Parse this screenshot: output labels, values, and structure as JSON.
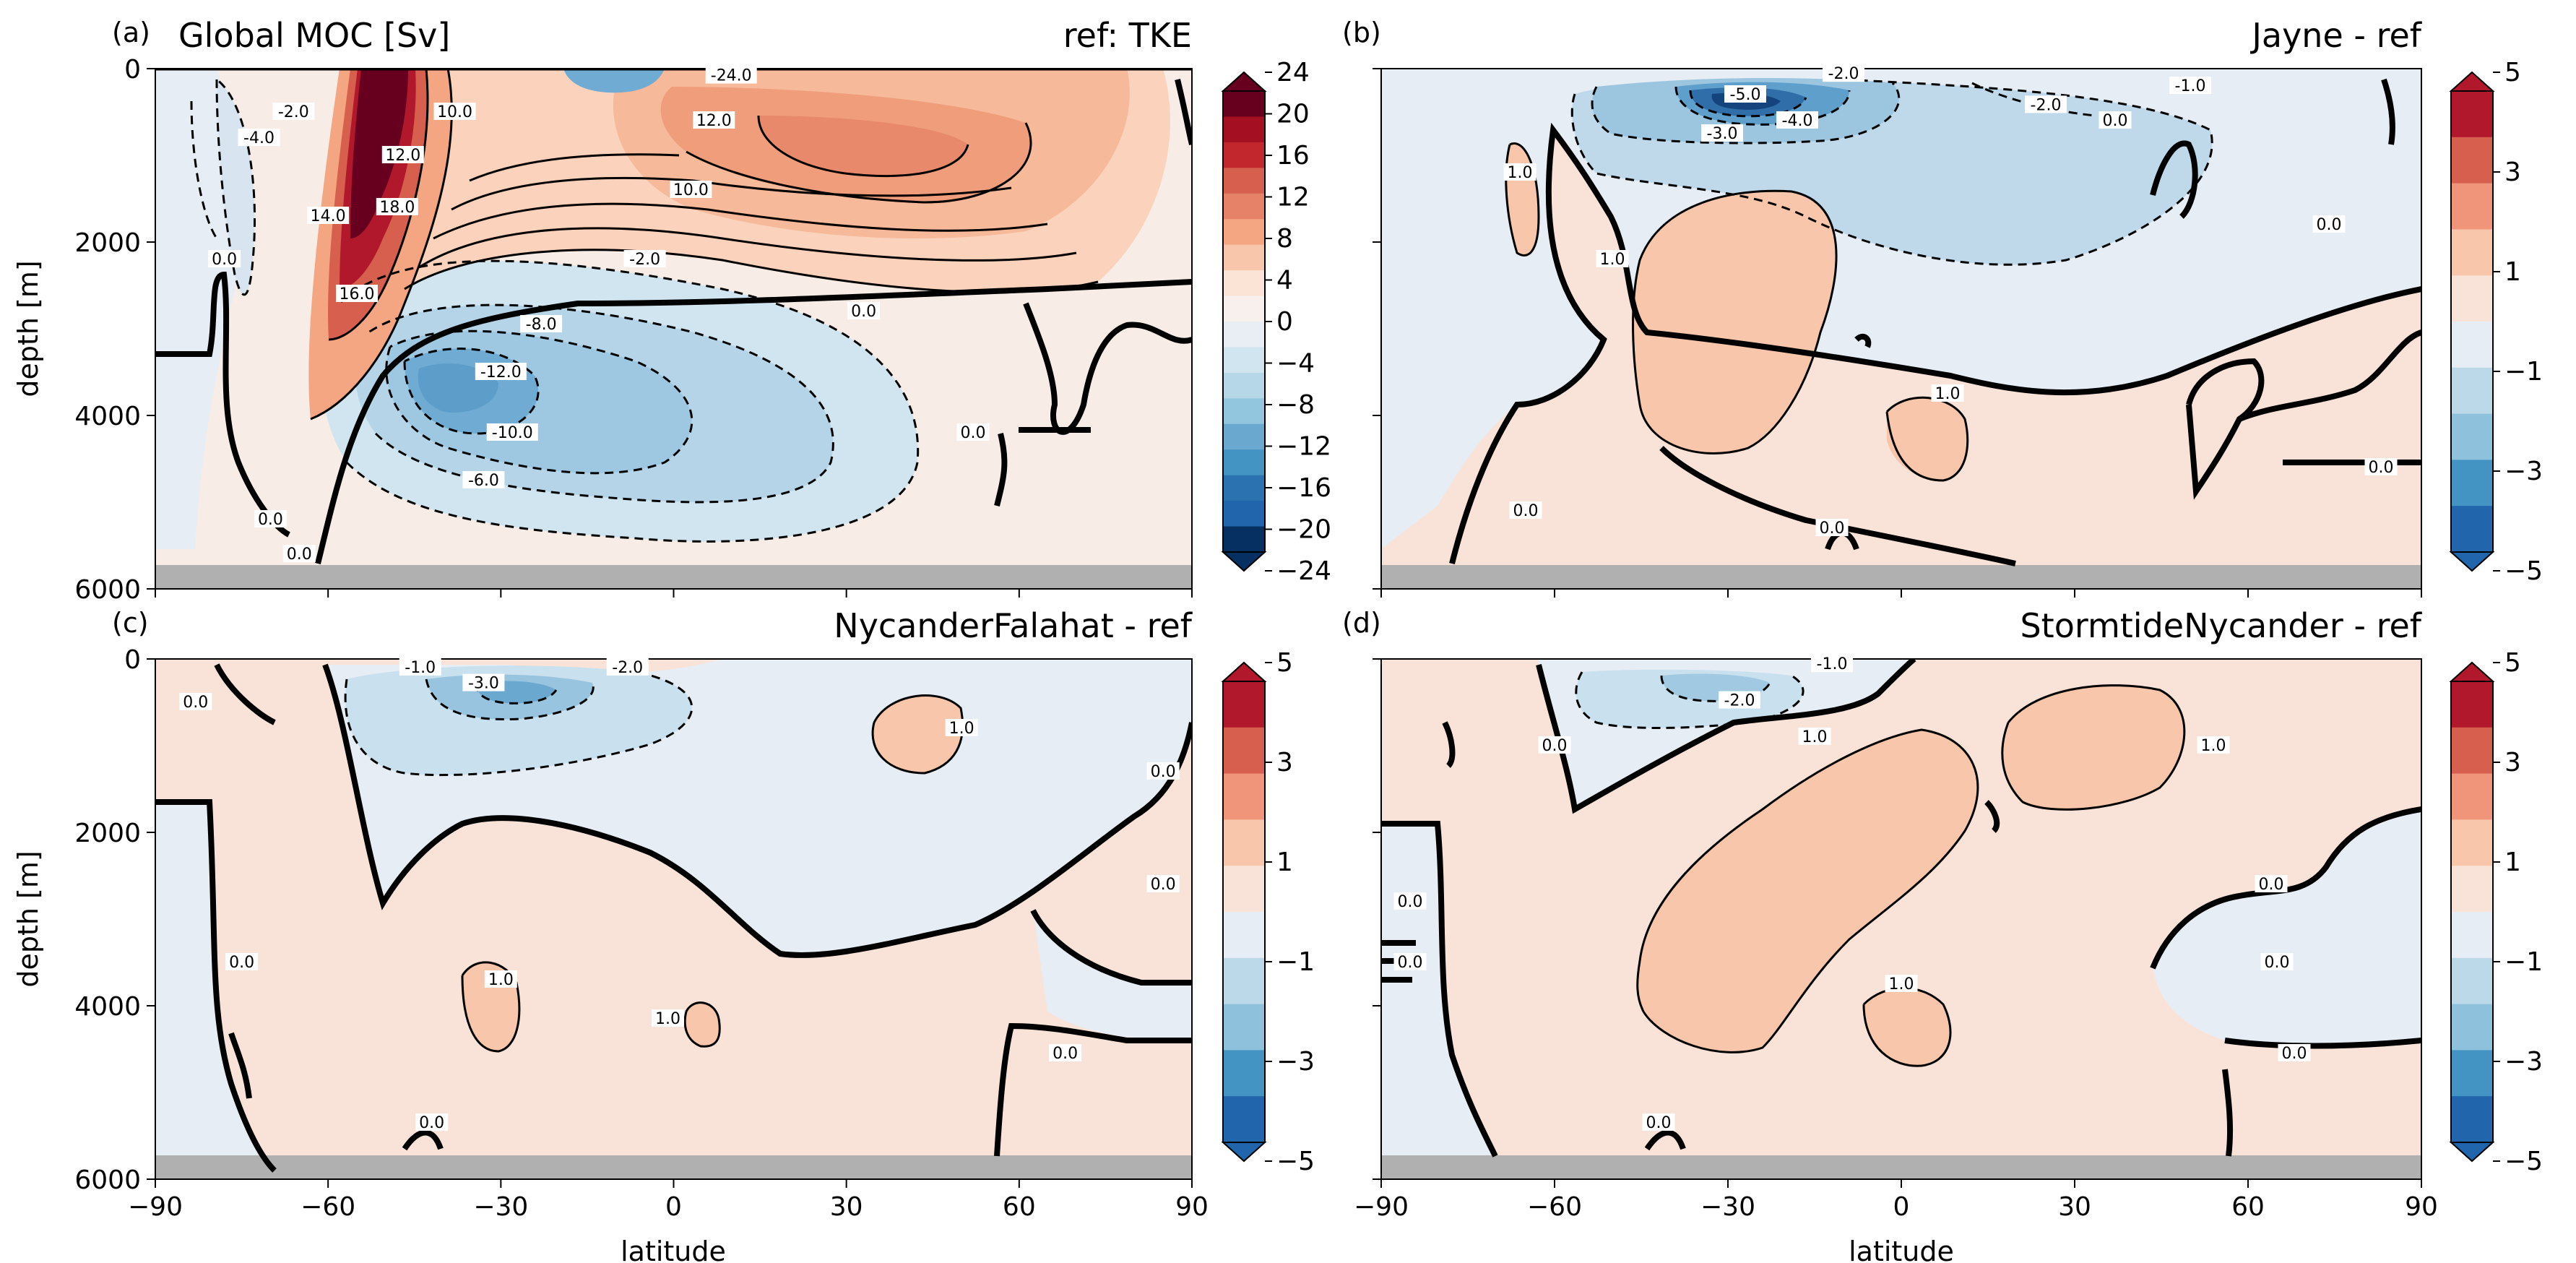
{
  "chart_data": [
    {
      "type": "heatmap",
      "panel": "(a)",
      "title": "Global MOC [Sv]",
      "subtitle": "ref: TKE",
      "xlabel": "",
      "ylabel": "depth [m]",
      "xlim": [
        -90,
        90
      ],
      "ylim": [
        6000,
        0
      ],
      "xticks": [
        "",
        "",
        "",
        "",
        "",
        "",
        ""
      ],
      "yticks": [
        "0",
        "2000",
        "4000",
        "6000"
      ],
      "colorbar_ticks": [
        "24",
        "20",
        "16",
        "12",
        "8",
        "4",
        "0",
        "−4",
        "−8",
        "−12",
        "−16",
        "−20",
        "−24"
      ],
      "contour_labels": [
        {
          "lat": -72,
          "depth": 800,
          "text": "-4.0"
        },
        {
          "lat": -66,
          "depth": 500,
          "text": "-2.0"
        },
        {
          "lat": -78,
          "depth": 2200,
          "text": "0.0"
        },
        {
          "lat": -60,
          "depth": 1700,
          "text": "14.0"
        },
        {
          "lat": -55,
          "depth": 2600,
          "text": "16.0"
        },
        {
          "lat": -48,
          "depth": 1600,
          "text": "18.0"
        },
        {
          "lat": -47,
          "depth": 1000,
          "text": "12.0"
        },
        {
          "lat": -38,
          "depth": 500,
          "text": "10.0"
        },
        {
          "lat": -5,
          "depth": 2200,
          "text": "-2.0"
        },
        {
          "lat": -23,
          "depth": 2950,
          "text": "-8.0"
        },
        {
          "lat": -30,
          "depth": 3500,
          "text": "-12.0"
        },
        {
          "lat": -28,
          "depth": 4200,
          "text": "-10.0"
        },
        {
          "lat": -33,
          "depth": 4750,
          "text": "-6.0"
        },
        {
          "lat": 3,
          "depth": 1400,
          "text": "10.0"
        },
        {
          "lat": 7,
          "depth": 600,
          "text": "12.0"
        },
        {
          "lat": 10,
          "depth": 80,
          "text": "-24.0"
        },
        {
          "lat": 33,
          "depth": 2800,
          "text": "0.0"
        },
        {
          "lat": 52,
          "depth": 4200,
          "text": "0.0"
        },
        {
          "lat": -70,
          "depth": 5200,
          "text": "0.0"
        },
        {
          "lat": -65,
          "depth": 5600,
          "text": "0.0"
        }
      ]
    },
    {
      "type": "heatmap",
      "panel": "(b)",
      "title": "",
      "subtitle": "Jayne - ref",
      "xlabel": "",
      "ylabel": "",
      "xlim": [
        -90,
        90
      ],
      "ylim": [
        6000,
        0
      ],
      "xticks": [
        "",
        "",
        "",
        "",
        "",
        "",
        ""
      ],
      "yticks": [
        "",
        "",
        "",
        ""
      ],
      "colorbar_ticks": [
        "5",
        "3",
        "1",
        "−1",
        "−3",
        "−5"
      ],
      "contour_labels": [
        {
          "lat": -27,
          "depth": 300,
          "text": "-5.0"
        },
        {
          "lat": -31,
          "depth": 750,
          "text": "-3.0"
        },
        {
          "lat": -18,
          "depth": 600,
          "text": "-4.0"
        },
        {
          "lat": -10,
          "depth": 60,
          "text": "-2.0"
        },
        {
          "lat": 25,
          "depth": 420,
          "text": "-2.0"
        },
        {
          "lat": 50,
          "depth": 200,
          "text": "-1.0"
        },
        {
          "lat": -66,
          "depth": 1200,
          "text": "1.0"
        },
        {
          "lat": -50,
          "depth": 2200,
          "text": "1.0"
        },
        {
          "lat": 8,
          "depth": 3750,
          "text": "1.0"
        },
        {
          "lat": 37,
          "depth": 600,
          "text": "0.0"
        },
        {
          "lat": 74,
          "depth": 1800,
          "text": "0.0"
        },
        {
          "lat": 83,
          "depth": 4600,
          "text": "0.0"
        },
        {
          "lat": -12,
          "depth": 5300,
          "text": "0.0"
        },
        {
          "lat": -65,
          "depth": 5100,
          "text": "0.0"
        }
      ]
    },
    {
      "type": "heatmap",
      "panel": "(c)",
      "title": "",
      "subtitle": "NycanderFalahat - ref",
      "xlabel": "",
      "ylabel": "depth [m]",
      "xlim": [
        -90,
        90
      ],
      "ylim": [
        6000,
        0
      ],
      "xticks": [
        "−90",
        "−60",
        "−30",
        "0",
        "30",
        "60",
        "90"
      ],
      "yticks": [
        "0",
        "2000",
        "4000",
        "6000"
      ],
      "colorbar_ticks": [
        "5",
        "3",
        "1",
        "−1",
        "−3",
        "−5"
      ],
      "contour_labels": [
        {
          "lat": -33,
          "depth": 280,
          "text": "-3.0"
        },
        {
          "lat": -44,
          "depth": 100,
          "text": "-1.0"
        },
        {
          "lat": -8,
          "depth": 100,
          "text": "-2.0"
        },
        {
          "lat": -83,
          "depth": 500,
          "text": "0.0"
        },
        {
          "lat": 50,
          "depth": 800,
          "text": "1.0"
        },
        {
          "lat": -30,
          "depth": 3700,
          "text": "1.0"
        },
        {
          "lat": -1,
          "depth": 4150,
          "text": "1.0"
        },
        {
          "lat": -75,
          "depth": 3500,
          "text": "0.0"
        },
        {
          "lat": 85,
          "depth": 1300,
          "text": "0.0"
        },
        {
          "lat": 85,
          "depth": 2600,
          "text": "0.0"
        },
        {
          "lat": 68,
          "depth": 4550,
          "text": "0.0"
        },
        {
          "lat": -42,
          "depth": 5350,
          "text": "0.0"
        }
      ]
    },
    {
      "type": "heatmap",
      "panel": "(d)",
      "title": "",
      "subtitle": "StormtideNycander - ref",
      "xlabel": "latitude",
      "ylabel": "",
      "xlim": [
        -90,
        90
      ],
      "ylim": [
        6000,
        0
      ],
      "xticks": [
        "−90",
        "−60",
        "−30",
        "0",
        "30",
        "60",
        "90"
      ],
      "yticks": [
        "",
        "",
        "",
        ""
      ],
      "colorbar_ticks": [
        "5",
        "3",
        "1",
        "−1",
        "−3",
        "−5"
      ],
      "contour_labels": [
        {
          "lat": -28,
          "depth": 480,
          "text": "-2.0"
        },
        {
          "lat": -12,
          "depth": 60,
          "text": "-1.0"
        },
        {
          "lat": -15,
          "depth": 900,
          "text": "1.0"
        },
        {
          "lat": 54,
          "depth": 1000,
          "text": "1.0"
        },
        {
          "lat": 0,
          "depth": 3750,
          "text": "1.0"
        },
        {
          "lat": -60,
          "depth": 1000,
          "text": "0.0"
        },
        {
          "lat": -85,
          "depth": 2800,
          "text": "0.0"
        },
        {
          "lat": -85,
          "depth": 3500,
          "text": "0.0"
        },
        {
          "lat": 64,
          "depth": 2600,
          "text": "0.0"
        },
        {
          "lat": 65,
          "depth": 3500,
          "text": "0.0"
        },
        {
          "lat": 68,
          "depth": 4550,
          "text": "0.0"
        },
        {
          "lat": -42,
          "depth": 5350,
          "text": "0.0"
        }
      ]
    }
  ],
  "x_tick_values": [
    -90,
    -60,
    -30,
    0,
    30,
    60,
    90
  ],
  "y_tick_values": [
    0,
    2000,
    4000,
    6000
  ],
  "colors": {
    "diverging_dark_red": "#67001f",
    "dark_red": "#b2182b",
    "red": "#d6604d",
    "salmon": "#f4a582",
    "light_salmon": "#fddbc7",
    "near_white_warm": "#f7efea",
    "near_white_cool": "#e9eef5",
    "light_blue": "#d1e5f0",
    "blue": "#92c5de",
    "mid_blue": "#4393c3",
    "dark_blue": "#2166ac",
    "navy": "#053061",
    "seafloor": "#b0b0b0"
  }
}
